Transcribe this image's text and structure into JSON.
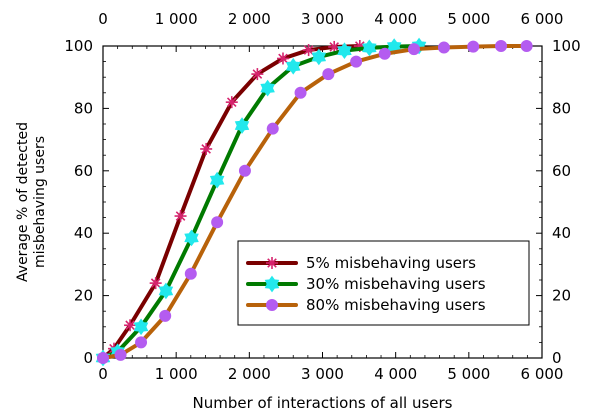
{
  "chart_data": {
    "type": "line",
    "xlabel": "Number of interactions of all users",
    "ylabel_lines": [
      "Average % of detected",
      "misbehaving users"
    ],
    "xlim": [
      0,
      6000
    ],
    "ylim": [
      0,
      100
    ],
    "xticks": [
      0,
      1000,
      2000,
      3000,
      4000,
      5000,
      6000
    ],
    "xtick_labels": [
      "0",
      "1 000",
      "2 000",
      "3 000",
      "4 000",
      "5 000",
      "6 000"
    ],
    "yticks": [
      0,
      20,
      40,
      60,
      80,
      100
    ],
    "ytick_labels": [
      "0",
      "20",
      "40",
      "60",
      "80",
      "100"
    ],
    "top_axis": true,
    "right_axis": true,
    "grid": false,
    "legend_position": "lower-right",
    "series": [
      {
        "name": "5% misbehaving users",
        "color": "#7a0000",
        "marker_color": "#d6246e",
        "marker": "asterisk",
        "x": [
          0,
          150,
          370,
          720,
          1060,
          1410,
          1760,
          2110,
          2460,
          2810,
          3160,
          3510
        ],
        "y": [
          0,
          3,
          10.5,
          24,
          45.5,
          67,
          82,
          91,
          96,
          98.7,
          99.7,
          100
        ]
      },
      {
        "name": "30% misbehaving users",
        "color": "#007a00",
        "marker_color": "#22e8ec",
        "marker": "star",
        "x": [
          0,
          200,
          520,
          860,
          1210,
          1560,
          1900,
          2250,
          2600,
          2950,
          3300,
          3640,
          3980,
          4320
        ],
        "y": [
          0,
          2,
          10,
          21.5,
          38.5,
          57,
          74.5,
          86.5,
          93.5,
          96.5,
          98.5,
          99.4,
          99.8,
          100
        ]
      },
      {
        "name": "80% misbehaving users",
        "color": "#b8620a",
        "marker_color": "#b45cf0",
        "marker": "circle",
        "x": [
          0,
          240,
          520,
          850,
          1200,
          1560,
          1940,
          2320,
          2700,
          3080,
          3460,
          3850,
          4250,
          4660,
          5060,
          5440,
          5790
        ],
        "y": [
          0,
          1,
          5,
          13.5,
          27,
          43.5,
          60,
          73.5,
          85,
          91,
          95,
          97.5,
          99,
          99.5,
          99.8,
          100,
          100
        ]
      }
    ]
  }
}
